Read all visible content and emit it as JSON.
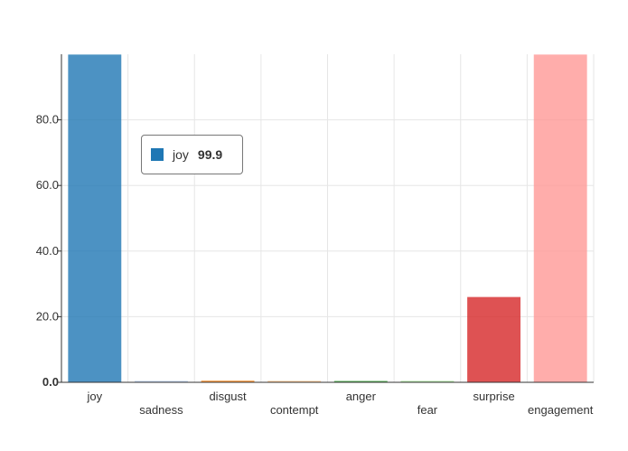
{
  "chart_data": {
    "type": "bar",
    "categories": [
      "joy",
      "sadness",
      "disgust",
      "contempt",
      "anger",
      "fear",
      "surprise",
      "engagement"
    ],
    "values": [
      99.9,
      0.3,
      0.5,
      0.3,
      0.4,
      0.2,
      26.0,
      99.9
    ],
    "colors": [
      "#1f77b4",
      "#aec7e8",
      "#ff7f0e",
      "#ffbb78",
      "#2ca02c",
      "#98df8a",
      "#d62728",
      "#ff9896"
    ],
    "opacity": 0.8,
    "ylim": [
      0,
      100
    ],
    "yticks": [
      0,
      20,
      40,
      60,
      80
    ],
    "ytick_labels": [
      "0.0",
      "20.0",
      "40.0",
      "60.0",
      "80.0"
    ],
    "grid": true,
    "title": "",
    "xlabel": "",
    "ylabel": ""
  },
  "tooltip": {
    "label": "joy",
    "value": "99.9",
    "color": "#1f77b4"
  }
}
